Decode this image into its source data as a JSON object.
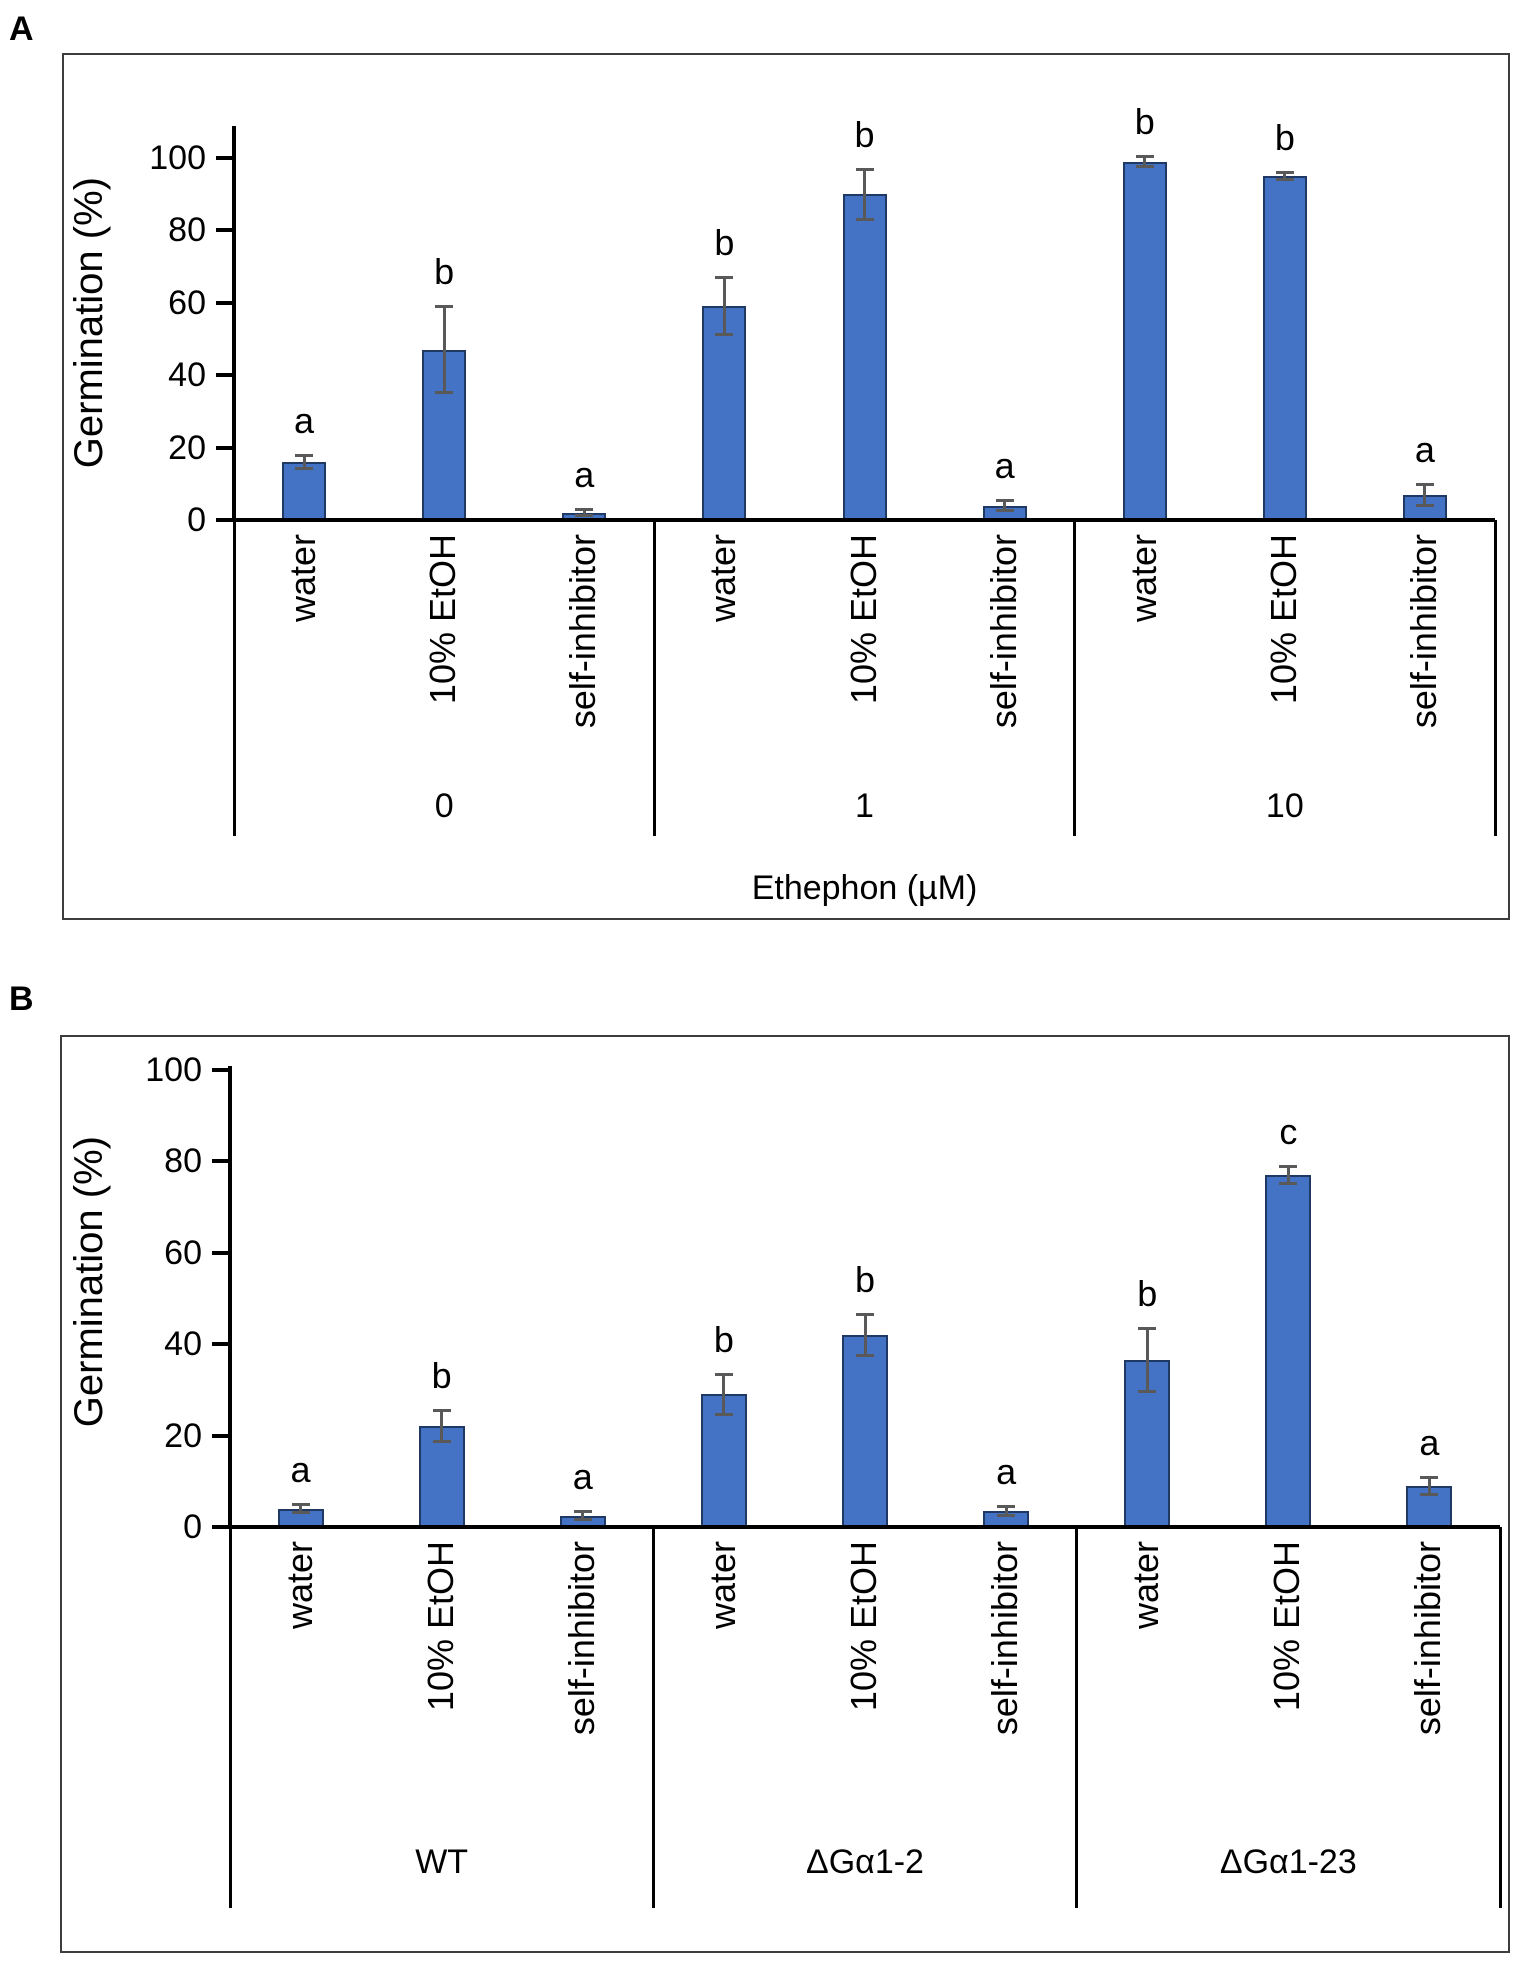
{
  "figure": {
    "panel_a_label": "A",
    "panel_b_label": "B"
  },
  "colors": {
    "bar_fill": "#4472C4",
    "bar_border": "#1F3864",
    "error_bar": "#595959",
    "axis": "#000000",
    "text": "#000000",
    "panel_border": "#3D3D3D"
  },
  "chart_data": [
    {
      "type": "bar",
      "panel": "A",
      "title": "",
      "ylabel": "Germination (%)",
      "xlabel": "Ethephon (µM)",
      "ylim": [
        0,
        100
      ],
      "yticks": [
        0,
        20,
        40,
        60,
        80,
        100
      ],
      "grid": false,
      "legend": "none",
      "treatments": [
        "water",
        "10% EtOH",
        "self-inhibitor"
      ],
      "groups": [
        {
          "label": "0",
          "bars": [
            {
              "treatment": "water",
              "value": 16,
              "error": 2,
              "letter": "a"
            },
            {
              "treatment": "10% EtOH",
              "value": 47,
              "error": 12,
              "letter": "b"
            },
            {
              "treatment": "self-inhibitor",
              "value": 2,
              "error": 1,
              "letter": "a"
            }
          ]
        },
        {
          "label": "1",
          "bars": [
            {
              "treatment": "water",
              "value": 59,
              "error": 8,
              "letter": "b"
            },
            {
              "treatment": "10% EtOH",
              "value": 90,
              "error": 7,
              "letter": "b"
            },
            {
              "treatment": "self-inhibitor",
              "value": 4,
              "error": 1.5,
              "letter": "a"
            }
          ]
        },
        {
          "label": "10",
          "bars": [
            {
              "treatment": "water",
              "value": 99,
              "error": 1.5,
              "letter": "b"
            },
            {
              "treatment": "10% EtOH",
              "value": 95,
              "error": 1,
              "letter": "b"
            },
            {
              "treatment": "self-inhibitor",
              "value": 7,
              "error": 3,
              "letter": "a"
            }
          ]
        }
      ]
    },
    {
      "type": "bar",
      "panel": "B",
      "title": "",
      "ylabel": "Germination (%)",
      "xlabel": "",
      "ylim": [
        0,
        100
      ],
      "yticks": [
        0,
        20,
        40,
        60,
        80,
        100
      ],
      "grid": false,
      "legend": "none",
      "treatments": [
        "water",
        "10% EtOH",
        "self-inhibitor"
      ],
      "groups": [
        {
          "label": "WT",
          "bars": [
            {
              "treatment": "water",
              "value": 4,
              "error": 1,
              "letter": "a"
            },
            {
              "treatment": "10% EtOH",
              "value": 22,
              "error": 3.5,
              "letter": "b"
            },
            {
              "treatment": "self-inhibitor",
              "value": 2.5,
              "error": 1,
              "letter": "a"
            }
          ]
        },
        {
          "label": "ΔGα1-2",
          "bars": [
            {
              "treatment": "water",
              "value": 29,
              "error": 4.5,
              "letter": "b"
            },
            {
              "treatment": "10% EtOH",
              "value": 42,
              "error": 4.5,
              "letter": "b"
            },
            {
              "treatment": "self-inhibitor",
              "value": 3.5,
              "error": 1,
              "letter": "a"
            }
          ]
        },
        {
          "label": "ΔGα1-23",
          "bars": [
            {
              "treatment": "water",
              "value": 36.5,
              "error": 7,
              "letter": "b"
            },
            {
              "treatment": "10% EtOH",
              "value": 77,
              "error": 2,
              "letter": "c"
            },
            {
              "treatment": "self-inhibitor",
              "value": 9,
              "error": 2,
              "letter": "a"
            }
          ]
        }
      ]
    }
  ]
}
